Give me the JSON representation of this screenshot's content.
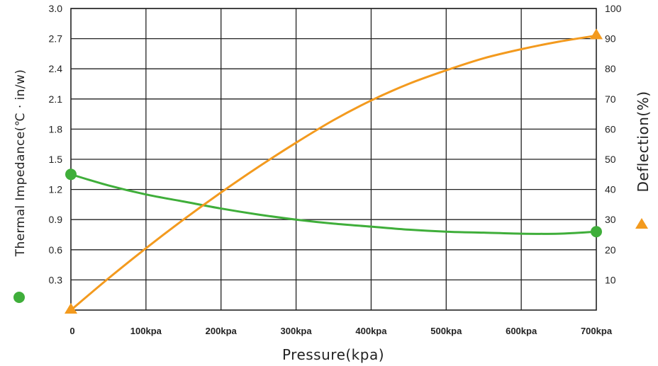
{
  "chart_data": {
    "type": "line",
    "xlabel": "Pressure(kpa)",
    "ylabel_left": "Thermal Impedance(℃ · in/w)",
    "ylabel_right": "Deflection(%)",
    "x_ticks": [
      "0",
      "100kpa",
      "200kpa",
      "300kpa",
      "400kpa",
      "500kpa",
      "600kpa",
      "700kpa"
    ],
    "y_left_ticks": [
      "3.0",
      "2.7",
      "2.4",
      "2.1",
      "1.8",
      "1.5",
      "1.2",
      "0.9",
      "0.6",
      "0.3"
    ],
    "y_right_ticks": [
      "100",
      "90",
      "80",
      "70",
      "60",
      "50",
      "40",
      "30",
      "20",
      "10"
    ],
    "xlim": [
      0,
      700
    ],
    "ylim_left": [
      0,
      3.0
    ],
    "ylim_right": [
      0,
      100
    ],
    "grid": true,
    "series": [
      {
        "axis": "left",
        "color": "#3fae3a",
        "marker": "circle",
        "x": [
          0,
          50,
          100,
          150,
          200,
          250,
          300,
          350,
          400,
          450,
          500,
          550,
          600,
          650,
          700
        ],
        "values": [
          1.35,
          1.24,
          1.15,
          1.08,
          1.01,
          0.95,
          0.9,
          0.86,
          0.83,
          0.8,
          0.78,
          0.77,
          0.76,
          0.76,
          0.78
        ]
      },
      {
        "axis": "right",
        "color": "#f39a1e",
        "marker": "triangle",
        "x": [
          0,
          50,
          100,
          150,
          200,
          250,
          300,
          350,
          400,
          450,
          500,
          550,
          600,
          650,
          700
        ],
        "values": [
          0,
          10.5,
          20.5,
          30,
          39,
          47.5,
          55.5,
          63,
          69.5,
          75,
          79.5,
          83.5,
          86.5,
          89,
          91
        ]
      }
    ]
  }
}
